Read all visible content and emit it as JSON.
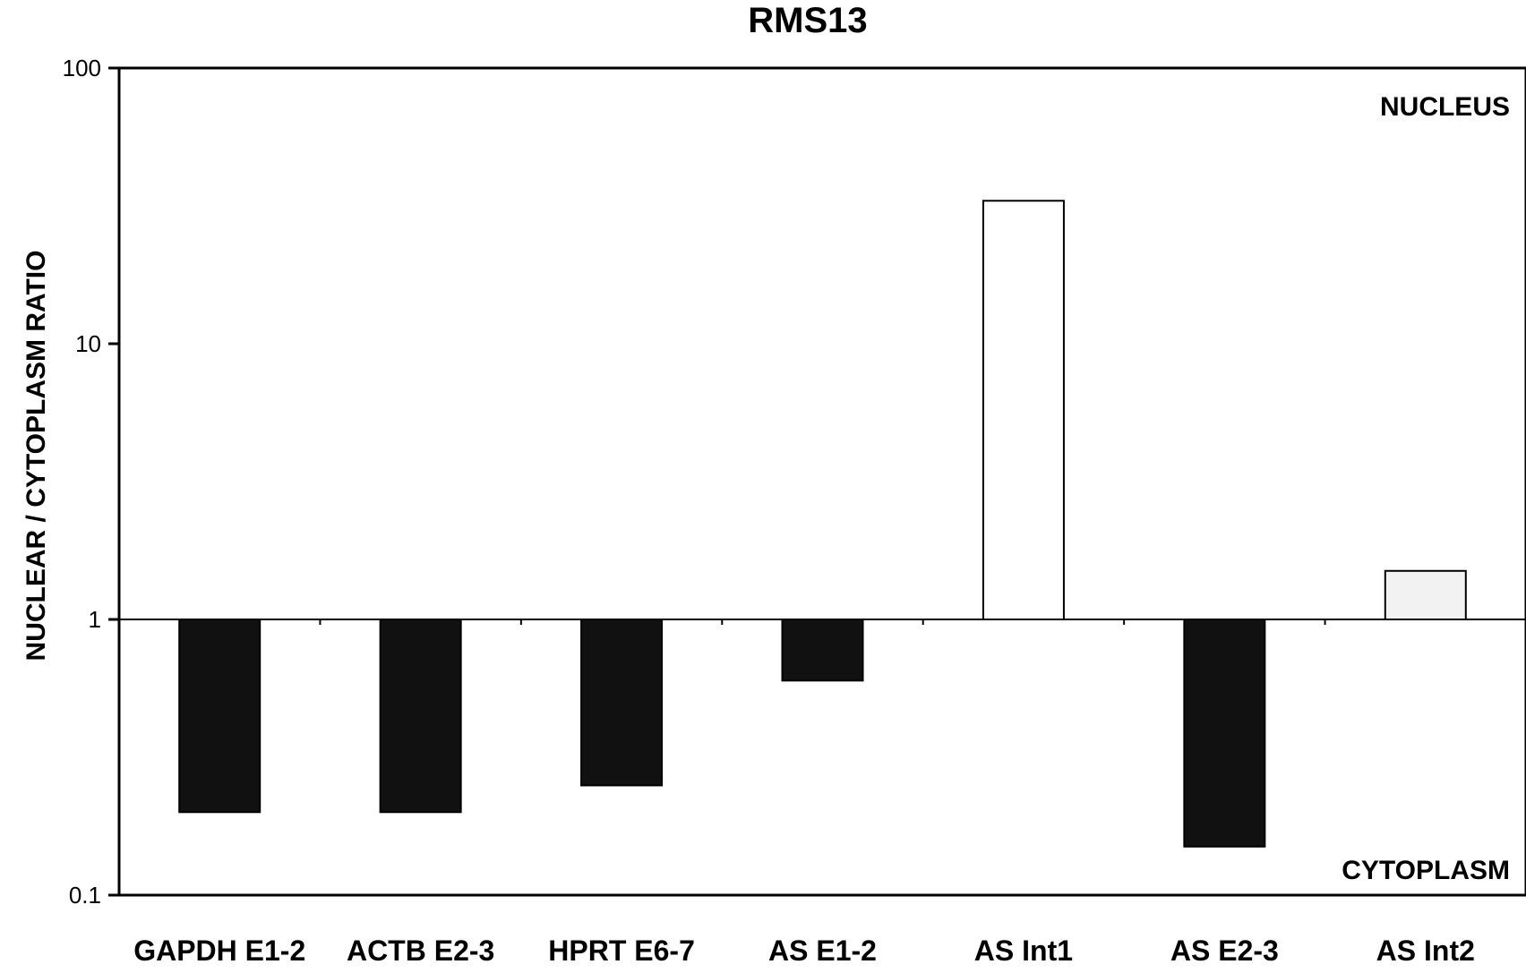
{
  "chart_data": {
    "type": "bar",
    "title": "RMS13",
    "xlabel": "",
    "ylabel": "NUCLEAR / CYTOPLASM RATIO",
    "yscale": "log",
    "ylim": [
      0.1,
      100
    ],
    "baseline": 1,
    "y_ticks": [
      "0.1",
      "1",
      "10",
      "100"
    ],
    "y_tick_values": [
      0.1,
      1,
      10,
      100
    ],
    "categories": [
      "GAPDH E1-2",
      "ACTB E2-3",
      "HPRT E6-7",
      "AS E1-2",
      "AS Int1",
      "AS E2-3",
      "AS Int2"
    ],
    "values": [
      0.2,
      0.2,
      0.25,
      0.6,
      33,
      0.15,
      1.5
    ],
    "bar_colors": [
      "#111111",
      "#111111",
      "#111111",
      "#111111",
      "#ffffff",
      "#111111",
      "#f2f2f2"
    ],
    "annotations": {
      "top_right": "NUCLEUS",
      "bottom_right": "CYTOPLASM"
    },
    "grid": false,
    "legend": "none"
  }
}
